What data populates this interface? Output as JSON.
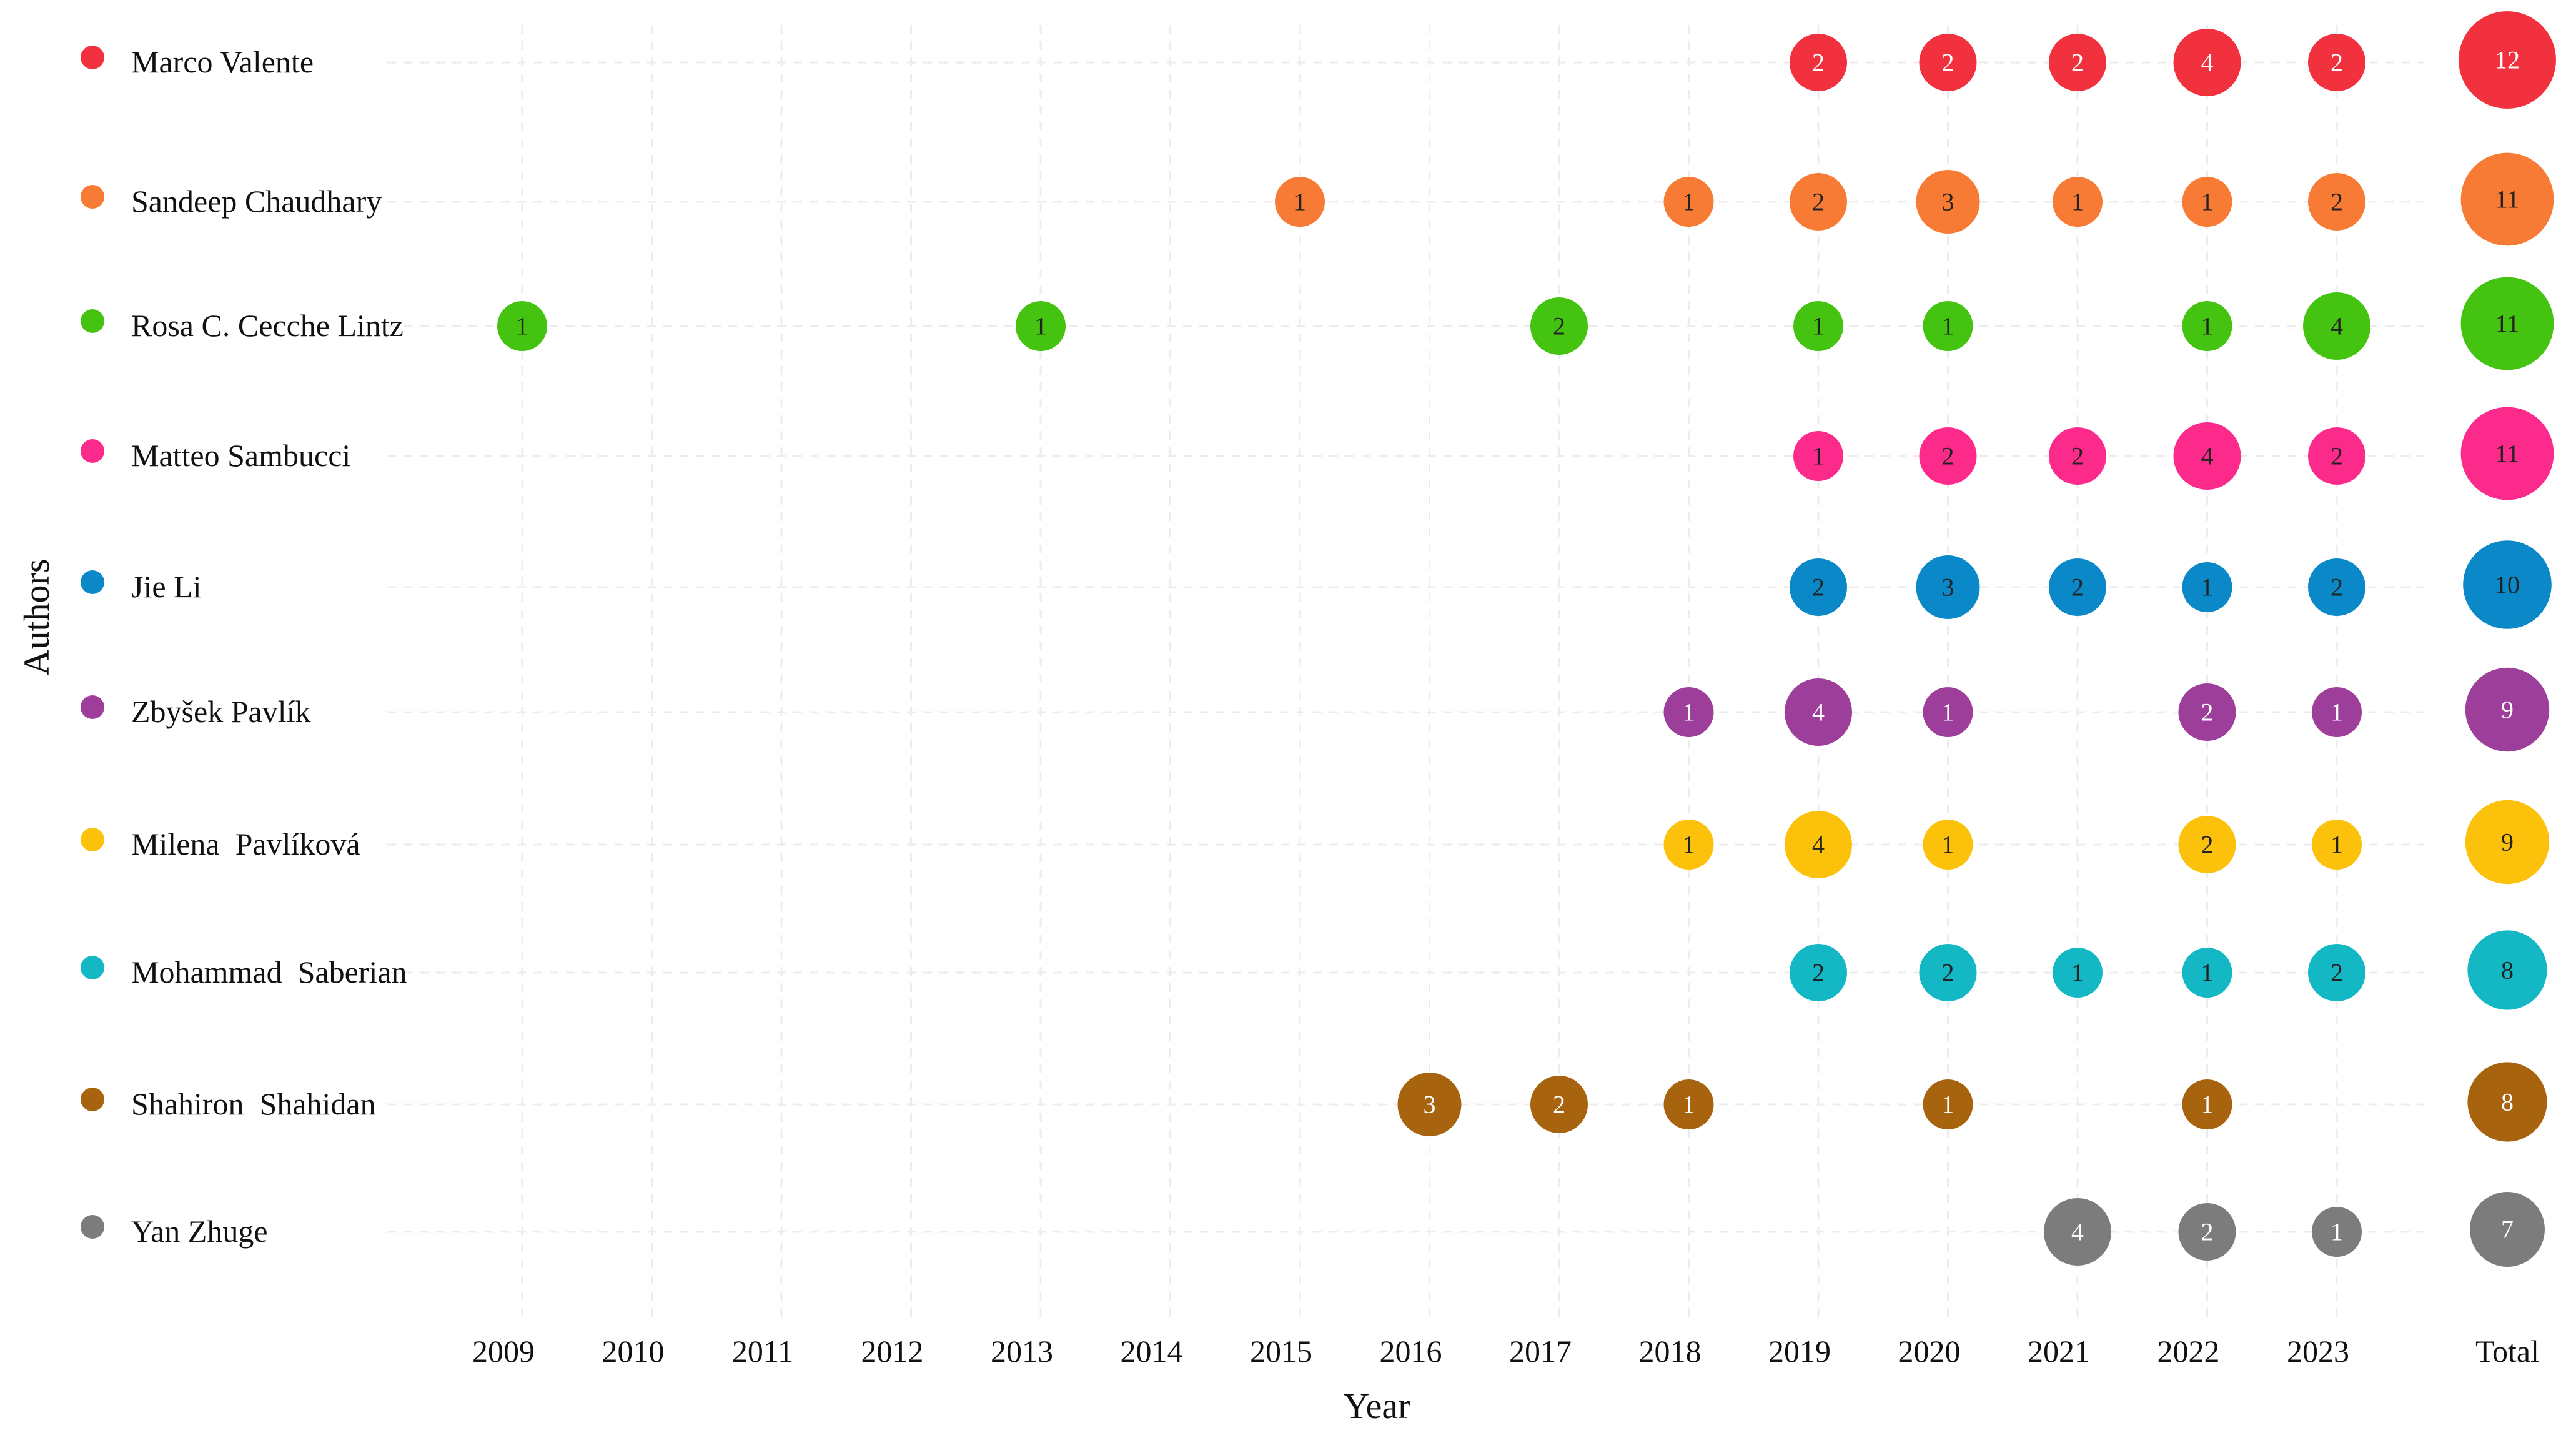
{
  "chart_data": {
    "type": "scatter",
    "xlabel": "Year",
    "ylabel": "Authors",
    "x": [
      "2009",
      "2010",
      "2011",
      "2012",
      "2013",
      "2014",
      "2015",
      "2016",
      "2017",
      "2018",
      "2019",
      "2020",
      "2021",
      "2022",
      "2023"
    ],
    "total_label": "Total",
    "grid": true,
    "legend": "left",
    "series": [
      {
        "name": "Marco Valente",
        "color": "#f2313e",
        "text_color": "#ffffff",
        "points": [
          {
            "x": "2019",
            "y": 2
          },
          {
            "x": "2020",
            "y": 2
          },
          {
            "x": "2021",
            "y": 2
          },
          {
            "x": "2022",
            "y": 4
          },
          {
            "x": "2023",
            "y": 2
          }
        ],
        "total": 12
      },
      {
        "name": "Sandeep Chaudhary",
        "color": "#f77b35",
        "text_color": "#222222",
        "points": [
          {
            "x": "2015",
            "y": 1
          },
          {
            "x": "2018",
            "y": 1
          },
          {
            "x": "2019",
            "y": 2
          },
          {
            "x": "2020",
            "y": 3
          },
          {
            "x": "2021",
            "y": 1
          },
          {
            "x": "2022",
            "y": 1
          },
          {
            "x": "2023",
            "y": 2
          }
        ],
        "total": 11
      },
      {
        "name": "Rosa C. Cecche Lintz",
        "color": "#44c411",
        "text_color": "#222222",
        "points": [
          {
            "x": "2009",
            "y": 1
          },
          {
            "x": "2013",
            "y": 1
          },
          {
            "x": "2017",
            "y": 2
          },
          {
            "x": "2019",
            "y": 1
          },
          {
            "x": "2020",
            "y": 1
          },
          {
            "x": "2022",
            "y": 1
          },
          {
            "x": "2023",
            "y": 4
          }
        ],
        "total": 11
      },
      {
        "name": "Matteo Sambucci",
        "color": "#fc2a8b",
        "text_color": "#222222",
        "points": [
          {
            "x": "2019",
            "y": 1
          },
          {
            "x": "2020",
            "y": 2
          },
          {
            "x": "2021",
            "y": 2
          },
          {
            "x": "2022",
            "y": 4
          },
          {
            "x": "2023",
            "y": 2
          }
        ],
        "total": 11
      },
      {
        "name": "Jie Li",
        "color": "#0a88c7",
        "text_color": "#222222",
        "points": [
          {
            "x": "2019",
            "y": 2
          },
          {
            "x": "2020",
            "y": 3
          },
          {
            "x": "2021",
            "y": 2
          },
          {
            "x": "2022",
            "y": 1
          },
          {
            "x": "2023",
            "y": 2
          }
        ],
        "total": 10
      },
      {
        "name": "Zbyšek Pavlík",
        "color": "#9d3f9a",
        "text_color": "#ffffff",
        "points": [
          {
            "x": "2018",
            "y": 1
          },
          {
            "x": "2019",
            "y": 4
          },
          {
            "x": "2020",
            "y": 1
          },
          {
            "x": "2022",
            "y": 2
          },
          {
            "x": "2023",
            "y": 1
          }
        ],
        "total": 9
      },
      {
        "name": "Milena  Pavlíková",
        "color": "#fcc20b",
        "text_color": "#222222",
        "points": [
          {
            "x": "2018",
            "y": 1
          },
          {
            "x": "2019",
            "y": 4
          },
          {
            "x": "2020",
            "y": 1
          },
          {
            "x": "2022",
            "y": 2
          },
          {
            "x": "2023",
            "y": 1
          }
        ],
        "total": 9
      },
      {
        "name": "Mohammad  Saberian",
        "color": "#13b8c4",
        "text_color": "#222222",
        "points": [
          {
            "x": "2019",
            "y": 2
          },
          {
            "x": "2020",
            "y": 2
          },
          {
            "x": "2021",
            "y": 1
          },
          {
            "x": "2022",
            "y": 1
          },
          {
            "x": "2023",
            "y": 2
          }
        ],
        "total": 8
      },
      {
        "name": "Shahiron  Shahidan",
        "color": "#a7630e",
        "text_color": "#ffffff",
        "points": [
          {
            "x": "2016",
            "y": 3
          },
          {
            "x": "2017",
            "y": 2
          },
          {
            "x": "2018",
            "y": 1
          },
          {
            "x": "2020",
            "y": 1
          },
          {
            "x": "2022",
            "y": 1
          }
        ],
        "total": 8
      },
      {
        "name": "Yan Zhuge",
        "color": "#7c7c7c",
        "text_color": "#ffffff",
        "points": [
          {
            "x": "2021",
            "y": 4
          },
          {
            "x": "2022",
            "y": 2
          },
          {
            "x": "2023",
            "y": 1
          }
        ],
        "total": 7
      }
    ]
  }
}
